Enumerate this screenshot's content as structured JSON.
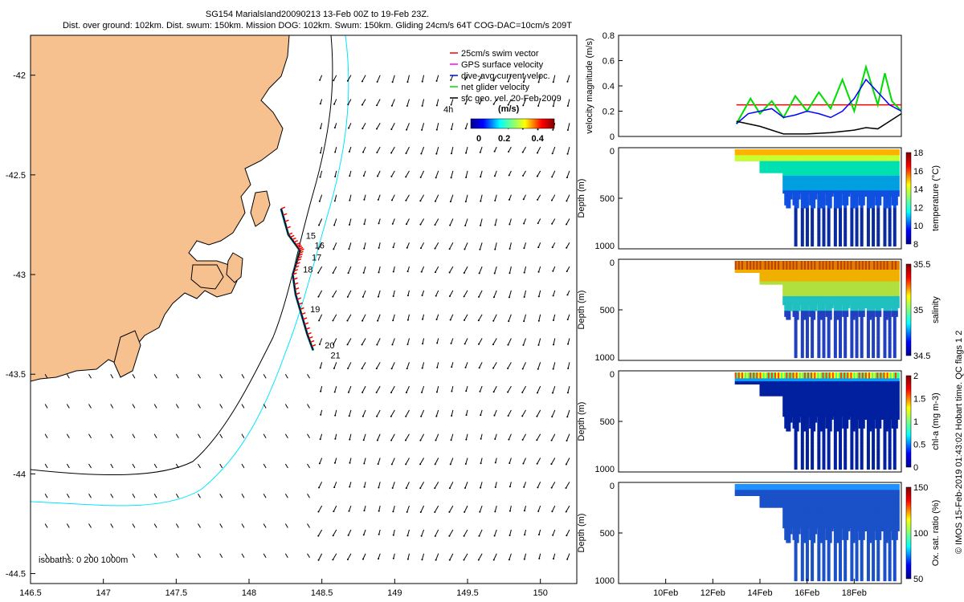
{
  "title": {
    "line1": "SG154 MarialsIand20090213 13-Feb 00Z to 19-Feb 23Z.",
    "line2": "Dist. over ground: 102km. Dist. swum: 150km. Mission DOG: 102km. Swum: 150km. Gliding 24cm/s 64T COG-DAC=10cm/s 209T"
  },
  "credit": "© IMOS 15-Feb-2019 01:43:02 Hobart time. QC flags 1  2",
  "colors": {
    "land": "#f7c08f",
    "coast": "#000000",
    "isobath200": "#000000",
    "isobath1000": "#00e5ff",
    "swim": "#ff0000",
    "gps": "#ff00ff",
    "dac": "#0000ff",
    "net": "#00dd00",
    "geo": "#000000"
  },
  "chart_data": [
    {
      "type": "map",
      "x_ticks": [
        "146.5",
        "147",
        "147.5",
        "148",
        "148.5",
        "149",
        "149.5",
        "150"
      ],
      "y_ticks": [
        "-42",
        "-42.5",
        "-43",
        "-43.5",
        "-44",
        "-44.5"
      ],
      "xlim": [
        146.5,
        150.25
      ],
      "ylim": [
        -44.55,
        -41.8
      ],
      "legend": [
        {
          "label": "25cm/s swim vector",
          "color": "#ff0000"
        },
        {
          "label": "GPS surface velocity",
          "color": "#ff00ff"
        },
        {
          "label": "dive-avg current veloc.",
          "color": "#0000ff"
        },
        {
          "label": "net glider velocity",
          "color": "#00dd00"
        },
        {
          "label": "sfc geo. vel. 20-Feb-2009",
          "color": "#000000"
        }
      ],
      "legend_extra": "4h",
      "colorbar": {
        "title": "(m/s)",
        "ticks": [
          "0",
          "0.2",
          "0.4"
        ],
        "range": [
          0,
          0.5
        ]
      },
      "isobath_label": "isobaths: 0   200   1000m",
      "track": [
        [
          148.22,
          -42.67
        ],
        [
          148.27,
          -42.8
        ],
        [
          148.32,
          -42.85
        ],
        [
          148.35,
          -42.88
        ],
        [
          148.33,
          -42.93
        ],
        [
          148.3,
          -43.0
        ],
        [
          148.32,
          -43.1
        ],
        [
          148.36,
          -43.2
        ],
        [
          148.4,
          -43.3
        ],
        [
          148.44,
          -43.38
        ]
      ],
      "day_labels": [
        {
          "text": "15",
          "lon": 148.39,
          "lat": -42.82
        },
        {
          "text": "16",
          "lon": 148.45,
          "lat": -42.87
        },
        {
          "text": "17",
          "lon": 148.43,
          "lat": -42.93
        },
        {
          "text": "18",
          "lon": 148.37,
          "lat": -42.99
        },
        {
          "text": "19",
          "lon": 148.42,
          "lat": -43.19
        },
        {
          "text": "20",
          "lon": 148.52,
          "lat": -43.37
        },
        {
          "text": "21",
          "lon": 148.56,
          "lat": -43.42
        }
      ]
    },
    {
      "type": "line",
      "ylabel": "velocity magnitude (m/s)",
      "ylim": [
        0,
        0.8
      ],
      "y_ticks": [
        "0",
        "0.2",
        "0.4",
        "0.6",
        "0.8"
      ],
      "xlim": [
        8,
        20
      ],
      "series": [
        {
          "color": "#ff0000",
          "x": [
            13,
            20
          ],
          "y": [
            0.25,
            0.25
          ]
        },
        {
          "color": "#00dd00",
          "x": [
            13,
            13.3,
            13.6,
            14,
            14.5,
            15,
            15.5,
            16,
            16.5,
            17,
            17.5,
            18,
            18.5,
            19,
            19.3,
            19.6,
            20
          ],
          "y": [
            0.1,
            0.2,
            0.3,
            0.18,
            0.28,
            0.15,
            0.32,
            0.2,
            0.35,
            0.22,
            0.45,
            0.2,
            0.55,
            0.25,
            0.5,
            0.28,
            0.2
          ]
        },
        {
          "color": "#0000ff",
          "x": [
            13,
            13.5,
            14,
            14.5,
            15,
            15.5,
            16,
            16.5,
            17,
            17.5,
            18,
            18.5,
            19,
            19.5,
            20
          ],
          "y": [
            0.1,
            0.18,
            0.2,
            0.22,
            0.15,
            0.17,
            0.2,
            0.18,
            0.15,
            0.2,
            0.3,
            0.45,
            0.35,
            0.25,
            0.2
          ]
        },
        {
          "color": "#000000",
          "x": [
            13,
            13.5,
            14,
            15,
            16,
            17,
            18,
            18.5,
            19,
            19.5,
            20
          ],
          "y": [
            0.12,
            0.1,
            0.08,
            0.02,
            0.02,
            0.03,
            0.05,
            0.07,
            0.06,
            0.12,
            0.18
          ]
        }
      ]
    },
    {
      "type": "heatmap",
      "ylabel": "Depth (m)",
      "cblabel": "temperature (°C)",
      "cb_ticks": [
        "8",
        "10",
        "12",
        "14",
        "16",
        "18"
      ],
      "ylim": [
        1000,
        0
      ],
      "y_ticks": [
        "0",
        "500",
        "1000"
      ],
      "scheme": "temp"
    },
    {
      "type": "heatmap",
      "ylabel": "Depth (m)",
      "cblabel": "salinity",
      "cb_ticks": [
        "34.5",
        "35",
        "35.5"
      ],
      "ylim": [
        1000,
        0
      ],
      "y_ticks": [
        "0",
        "500",
        "1000"
      ],
      "scheme": "sal"
    },
    {
      "type": "heatmap",
      "ylabel": "Depth (m)",
      "cblabel": "chl-a (mg m-3)",
      "cb_ticks": [
        "0",
        "0.5",
        "1",
        "1.5",
        "2"
      ],
      "ylim": [
        1000,
        0
      ],
      "y_ticks": [
        "0",
        "500",
        "1000"
      ],
      "scheme": "chl"
    },
    {
      "type": "heatmap",
      "ylabel": "Depth (m)",
      "cblabel": "Ox. sat. ratio (%)",
      "cb_ticks": [
        "50",
        "100",
        "150"
      ],
      "ylim": [
        1000,
        0
      ],
      "y_ticks": [
        "0",
        "500",
        "1000"
      ],
      "scheme": "oxy",
      "x_ticks": [
        "10Feb",
        "12Feb",
        "14Feb",
        "16Feb",
        "18Feb"
      ]
    }
  ]
}
